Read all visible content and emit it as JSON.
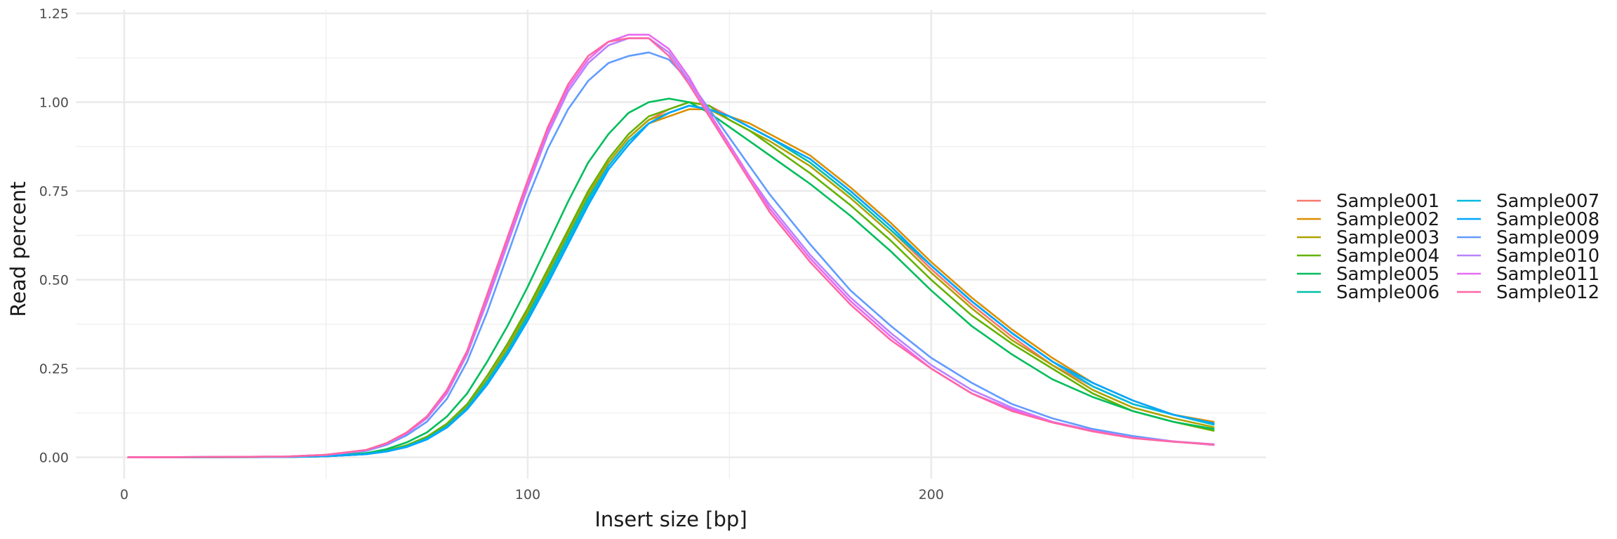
{
  "chart_data": {
    "type": "line",
    "title": "",
    "xlabel": "Insert size [bp]",
    "ylabel": "Read percent",
    "xlim": [
      -12,
      283
    ],
    "ylim": [
      -0.06,
      1.26
    ],
    "x_ticks": [
      0,
      100,
      200
    ],
    "x_tick_labels": [
      "0",
      "100",
      "200"
    ],
    "x_minor_ticks": [
      50,
      150,
      250
    ],
    "y_ticks": [
      0,
      0.25,
      0.5,
      0.75,
      1.0,
      1.25
    ],
    "y_tick_labels": [
      "0.00",
      "0.25",
      "0.50",
      "0.75",
      "1.00",
      "1.25"
    ],
    "y_minor_ticks": [
      0.125,
      0.375,
      0.625,
      0.875,
      1.125
    ],
    "grid": true,
    "legend_position": "right",
    "legend_columns": 2,
    "x": [
      1,
      40,
      50,
      60,
      65,
      70,
      75,
      80,
      85,
      90,
      95,
      100,
      105,
      110,
      115,
      120,
      125,
      130,
      135,
      140,
      145,
      150,
      155,
      160,
      170,
      180,
      190,
      200,
      210,
      220,
      230,
      240,
      250,
      260,
      270
    ],
    "series": [
      {
        "name": "Sample001",
        "color": "#F8766D",
        "values": [
          0,
          0.001,
          0.003,
          0.009,
          0.018,
          0.032,
          0.055,
          0.09,
          0.145,
          0.22,
          0.31,
          0.41,
          0.52,
          0.63,
          0.74,
          0.83,
          0.9,
          0.95,
          0.98,
          1.0,
          0.99,
          0.96,
          0.93,
          0.9,
          0.83,
          0.74,
          0.64,
          0.53,
          0.43,
          0.34,
          0.26,
          0.2,
          0.15,
          0.12,
          0.095
        ]
      },
      {
        "name": "Sample002",
        "color": "#DB8E00",
        "values": [
          0,
          0.001,
          0.003,
          0.009,
          0.017,
          0.03,
          0.052,
          0.088,
          0.14,
          0.215,
          0.3,
          0.4,
          0.51,
          0.62,
          0.73,
          0.82,
          0.89,
          0.94,
          0.96,
          0.98,
          0.98,
          0.96,
          0.94,
          0.91,
          0.85,
          0.76,
          0.66,
          0.55,
          0.45,
          0.36,
          0.28,
          0.21,
          0.16,
          0.12,
          0.1
        ]
      },
      {
        "name": "Sample003",
        "color": "#AEA200",
        "values": [
          0,
          0.001,
          0.003,
          0.01,
          0.018,
          0.032,
          0.055,
          0.09,
          0.145,
          0.22,
          0.31,
          0.41,
          0.52,
          0.63,
          0.74,
          0.83,
          0.9,
          0.95,
          0.97,
          0.99,
          0.98,
          0.95,
          0.92,
          0.89,
          0.82,
          0.73,
          0.63,
          0.52,
          0.42,
          0.33,
          0.26,
          0.19,
          0.14,
          0.11,
          0.085
        ]
      },
      {
        "name": "Sample004",
        "color": "#64B200",
        "values": [
          0,
          0.001,
          0.003,
          0.01,
          0.019,
          0.034,
          0.058,
          0.095,
          0.15,
          0.23,
          0.32,
          0.42,
          0.53,
          0.64,
          0.75,
          0.84,
          0.91,
          0.96,
          0.98,
          1.0,
          0.99,
          0.95,
          0.92,
          0.88,
          0.8,
          0.71,
          0.61,
          0.5,
          0.4,
          0.32,
          0.25,
          0.18,
          0.13,
          0.1,
          0.075
        ]
      },
      {
        "name": "Sample005",
        "color": "#00BD5C",
        "values": [
          0,
          0.001,
          0.004,
          0.012,
          0.023,
          0.042,
          0.07,
          0.115,
          0.18,
          0.27,
          0.37,
          0.48,
          0.6,
          0.72,
          0.83,
          0.91,
          0.97,
          1.0,
          1.01,
          1.0,
          0.97,
          0.93,
          0.89,
          0.85,
          0.77,
          0.68,
          0.58,
          0.47,
          0.37,
          0.29,
          0.22,
          0.17,
          0.13,
          0.1,
          0.08
        ]
      },
      {
        "name": "Sample006",
        "color": "#00C1A7",
        "values": [
          0,
          0.001,
          0.003,
          0.009,
          0.017,
          0.031,
          0.053,
          0.088,
          0.14,
          0.215,
          0.3,
          0.4,
          0.51,
          0.62,
          0.73,
          0.82,
          0.89,
          0.94,
          0.97,
          0.99,
          0.98,
          0.96,
          0.93,
          0.9,
          0.83,
          0.74,
          0.64,
          0.54,
          0.44,
          0.35,
          0.27,
          0.2,
          0.15,
          0.12,
          0.092
        ]
      },
      {
        "name": "Sample007",
        "color": "#00BADE",
        "values": [
          0,
          0.001,
          0.003,
          0.009,
          0.017,
          0.03,
          0.052,
          0.086,
          0.138,
          0.21,
          0.295,
          0.39,
          0.5,
          0.61,
          0.72,
          0.82,
          0.89,
          0.94,
          0.97,
          0.99,
          0.98,
          0.96,
          0.93,
          0.9,
          0.84,
          0.75,
          0.65,
          0.54,
          0.44,
          0.35,
          0.27,
          0.2,
          0.15,
          0.12,
          0.094
        ]
      },
      {
        "name": "Sample008",
        "color": "#00A6FF",
        "values": [
          0,
          0.001,
          0.003,
          0.009,
          0.016,
          0.029,
          0.05,
          0.084,
          0.135,
          0.205,
          0.29,
          0.385,
          0.49,
          0.6,
          0.71,
          0.81,
          0.88,
          0.94,
          0.97,
          0.99,
          0.98,
          0.96,
          0.93,
          0.9,
          0.84,
          0.75,
          0.65,
          0.54,
          0.44,
          0.35,
          0.27,
          0.21,
          0.16,
          0.12,
          0.096
        ]
      },
      {
        "name": "Sample009",
        "color": "#619CFF",
        "values": [
          0,
          0.002,
          0.006,
          0.018,
          0.035,
          0.062,
          0.1,
          0.165,
          0.27,
          0.41,
          0.57,
          0.73,
          0.87,
          0.98,
          1.06,
          1.11,
          1.13,
          1.14,
          1.12,
          1.06,
          0.98,
          0.9,
          0.82,
          0.74,
          0.6,
          0.47,
          0.37,
          0.28,
          0.21,
          0.15,
          0.11,
          0.08,
          0.06,
          0.045,
          0.035
        ]
      },
      {
        "name": "Sample010",
        "color": "#B983FF",
        "values": [
          0,
          0.002,
          0.007,
          0.02,
          0.038,
          0.067,
          0.11,
          0.18,
          0.29,
          0.44,
          0.6,
          0.76,
          0.91,
          1.03,
          1.11,
          1.16,
          1.18,
          1.18,
          1.14,
          1.06,
          0.97,
          0.88,
          0.79,
          0.71,
          0.57,
          0.45,
          0.35,
          0.26,
          0.19,
          0.14,
          0.1,
          0.075,
          0.055,
          0.045,
          0.037
        ]
      },
      {
        "name": "Sample011",
        "color": "#E76BF3",
        "values": [
          0,
          0.002,
          0.007,
          0.02,
          0.038,
          0.068,
          0.112,
          0.182,
          0.295,
          0.45,
          0.61,
          0.77,
          0.92,
          1.04,
          1.12,
          1.17,
          1.19,
          1.19,
          1.15,
          1.07,
          0.97,
          0.88,
          0.79,
          0.7,
          0.56,
          0.44,
          0.34,
          0.25,
          0.18,
          0.135,
          0.1,
          0.075,
          0.055,
          0.045,
          0.035
        ]
      },
      {
        "name": "Sample012",
        "color": "#FF67A4",
        "values": [
          0,
          0.002,
          0.007,
          0.021,
          0.04,
          0.07,
          0.115,
          0.19,
          0.3,
          0.46,
          0.62,
          0.78,
          0.93,
          1.05,
          1.13,
          1.17,
          1.18,
          1.18,
          1.13,
          1.05,
          0.96,
          0.87,
          0.78,
          0.69,
          0.55,
          0.43,
          0.33,
          0.25,
          0.18,
          0.13,
          0.098,
          0.073,
          0.054,
          0.044,
          0.036
        ]
      }
    ]
  }
}
